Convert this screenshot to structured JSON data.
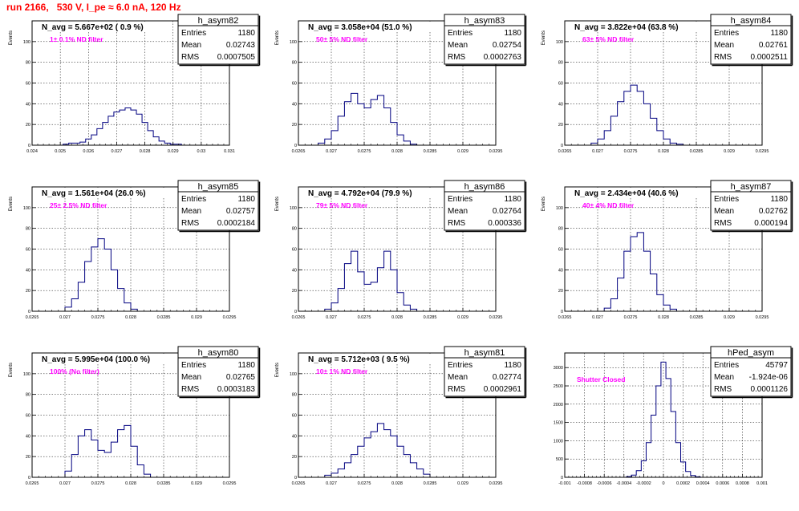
{
  "title": "run 2166,   530 V, I_pe ≈ 6.0 nA, 120 Hz",
  "colors": {
    "title": "#ff0000",
    "histogram": "#000080",
    "annotation": "#ff00ff",
    "grid": "#000000"
  },
  "chart_data": [
    {
      "type": "histogram",
      "hist_name": "h_asym82",
      "stats": {
        "entries_label": "Entries",
        "entries": "1180",
        "mean_label": "Mean",
        "mean": "0.02743",
        "rms_label": "RMS",
        "rms": "0.0007505"
      },
      "title": "N_avg = 5.667e+02 ( 0.9 %)",
      "annotation": "1± 0.1% ND filter",
      "ylabel": "Events",
      "xlabel": "",
      "xlim": [
        0.024,
        0.031
      ],
      "ylim": [
        0,
        120
      ],
      "xticks": [
        0.024,
        0.025,
        0.026,
        0.027,
        0.028,
        0.029,
        0.03,
        0.031
      ],
      "xtick_labels": [
        "0.024",
        "0.025",
        "0.026",
        "0.027",
        "0.028",
        "0.029",
        "0.03",
        "0.031"
      ],
      "yticks": [
        0,
        20,
        40,
        60,
        80,
        100,
        120
      ],
      "ytick_labels": [
        "0",
        "20",
        "40",
        "60",
        "80",
        "100",
        ""
      ],
      "x": [
        0.0252,
        0.0254,
        0.0256,
        0.0258,
        0.026,
        0.0262,
        0.0264,
        0.0266,
        0.0268,
        0.027,
        0.0272,
        0.0274,
        0.0276,
        0.0278,
        0.028,
        0.0282,
        0.0284,
        0.0286,
        0.0288,
        0.029,
        0.0292
      ],
      "values": [
        1,
        2,
        2,
        3,
        6,
        10,
        16,
        22,
        28,
        32,
        34,
        36,
        34,
        30,
        22,
        14,
        8,
        4,
        2,
        1,
        1
      ]
    },
    {
      "type": "histogram",
      "hist_name": "h_asym83",
      "stats": {
        "entries_label": "Entries",
        "entries": "1180",
        "mean_label": "Mean",
        "mean": "0.02754",
        "rms_label": "RMS",
        "rms": "0.0002763"
      },
      "title": "N_avg = 3.058e+04 (51.0 %)",
      "annotation": "50± 5% ND filter",
      "ylabel": "Events",
      "xlabel": "",
      "xlim": [
        0.0265,
        0.0295
      ],
      "ylim": [
        0,
        120
      ],
      "xticks": [
        0.0265,
        0.027,
        0.0275,
        0.028,
        0.0285,
        0.029,
        0.0295
      ],
      "xtick_labels": [
        "0.0265",
        "0.027",
        "0.0275",
        "0.028",
        "0.0285",
        "0.029",
        "0.0295"
      ],
      "yticks": [
        0,
        20,
        40,
        60,
        80,
        100,
        120
      ],
      "ytick_labels": [
        "0",
        "20",
        "40",
        "60",
        "80",
        "100",
        ""
      ],
      "x": [
        0.02685,
        0.02695,
        0.02705,
        0.02715,
        0.02725,
        0.02735,
        0.02745,
        0.02755,
        0.02765,
        0.02775,
        0.02785,
        0.02795,
        0.02805,
        0.02815,
        0.02825
      ],
      "values": [
        2,
        6,
        14,
        28,
        42,
        50,
        40,
        36,
        44,
        48,
        36,
        22,
        10,
        4,
        1
      ]
    },
    {
      "type": "histogram",
      "hist_name": "h_asym84",
      "stats": {
        "entries_label": "Entries",
        "entries": "1180",
        "mean_label": "Mean",
        "mean": "0.02761",
        "rms_label": "RMS",
        "rms": "0.0002511"
      },
      "title": "N_avg = 3.822e+04 (63.8 %)",
      "annotation": "63± 5% ND filter",
      "ylabel": "Events",
      "xlabel": "",
      "xlim": [
        0.0265,
        0.0295
      ],
      "ylim": [
        0,
        120
      ],
      "xticks": [
        0.0265,
        0.027,
        0.0275,
        0.028,
        0.0285,
        0.029,
        0.0295
      ],
      "xtick_labels": [
        "0.0265",
        "0.027",
        "0.0275",
        "0.028",
        "0.0285",
        "0.029",
        "0.0295"
      ],
      "yticks": [
        0,
        20,
        40,
        60,
        80,
        100,
        120
      ],
      "ytick_labels": [
        "0",
        "20",
        "40",
        "60",
        "80",
        "100",
        ""
      ],
      "x": [
        0.02695,
        0.02705,
        0.02715,
        0.02725,
        0.02735,
        0.02745,
        0.02755,
        0.02765,
        0.02775,
        0.02785,
        0.02795,
        0.02805,
        0.02815,
        0.02825
      ],
      "values": [
        2,
        6,
        14,
        28,
        42,
        52,
        58,
        52,
        40,
        26,
        14,
        6,
        2,
        1
      ]
    },
    {
      "type": "histogram",
      "hist_name": "h_asym85",
      "stats": {
        "entries_label": "Entries",
        "entries": "1180",
        "mean_label": "Mean",
        "mean": "0.02757",
        "rms_label": "RMS",
        "rms": "0.0002184"
      },
      "title": "N_avg = 1.561e+04 (26.0 %)",
      "annotation": "25± 2.5% ND filter",
      "ylabel": "Events",
      "xlabel": "",
      "xlim": [
        0.0265,
        0.0295
      ],
      "ylim": [
        0,
        120
      ],
      "xticks": [
        0.0265,
        0.027,
        0.0275,
        0.028,
        0.0285,
        0.029,
        0.0295
      ],
      "xtick_labels": [
        "0.0265",
        "0.027",
        "0.0275",
        "0.028",
        "0.0285",
        "0.029",
        "0.0295"
      ],
      "yticks": [
        0,
        20,
        40,
        60,
        80,
        100,
        120
      ],
      "ytick_labels": [
        "0",
        "20",
        "40",
        "60",
        "80",
        "100",
        ""
      ],
      "x": [
        0.02705,
        0.02715,
        0.02725,
        0.02735,
        0.02745,
        0.02755,
        0.02765,
        0.02775,
        0.02785,
        0.02795,
        0.02805
      ],
      "values": [
        4,
        12,
        28,
        48,
        62,
        70,
        60,
        40,
        22,
        8,
        2
      ]
    },
    {
      "type": "histogram",
      "hist_name": "h_asym86",
      "stats": {
        "entries_label": "Entries",
        "entries": "1180",
        "mean_label": "Mean",
        "mean": "0.02764",
        "rms_label": "RMS",
        "rms": "0.000336"
      },
      "title": "N_avg = 4.792e+04 (79.9 %)",
      "annotation": "79± 5% ND filter",
      "ylabel": "Events",
      "xlabel": "",
      "xlim": [
        0.0265,
        0.0295
      ],
      "ylim": [
        0,
        120
      ],
      "xticks": [
        0.0265,
        0.027,
        0.0275,
        0.028,
        0.0285,
        0.029,
        0.0295
      ],
      "xtick_labels": [
        "0.0265",
        "0.027",
        "0.0275",
        "0.028",
        "0.0285",
        "0.029",
        "0.0295"
      ],
      "yticks": [
        0,
        20,
        40,
        60,
        80,
        100,
        120
      ],
      "ytick_labels": [
        "0",
        "20",
        "40",
        "60",
        "80",
        "100",
        ""
      ],
      "x": [
        0.02695,
        0.02705,
        0.02715,
        0.02725,
        0.02735,
        0.02745,
        0.02755,
        0.02765,
        0.02775,
        0.02785,
        0.02795,
        0.02805,
        0.02815,
        0.02825
      ],
      "values": [
        2,
        8,
        22,
        46,
        58,
        38,
        26,
        28,
        42,
        58,
        40,
        18,
        6,
        2
      ]
    },
    {
      "type": "histogram",
      "hist_name": "h_asym87",
      "stats": {
        "entries_label": "Entries",
        "entries": "1180",
        "mean_label": "Mean",
        "mean": "0.02762",
        "rms_label": "RMS",
        "rms": "0.000194"
      },
      "title": "N_avg = 2.434e+04 (40.6 %)",
      "annotation": "40± 4% ND filter",
      "ylabel": "Events",
      "xlabel": "",
      "xlim": [
        0.0265,
        0.0295
      ],
      "ylim": [
        0,
        120
      ],
      "xticks": [
        0.0265,
        0.027,
        0.0275,
        0.028,
        0.0285,
        0.029,
        0.0295
      ],
      "xtick_labels": [
        "0.0265",
        "0.027",
        "0.0275",
        "0.028",
        "0.0285",
        "0.029",
        "0.0295"
      ],
      "yticks": [
        0,
        20,
        40,
        60,
        80,
        100,
        120
      ],
      "ytick_labels": [
        "0",
        "20",
        "40",
        "60",
        "80",
        "100",
        ""
      ],
      "x": [
        0.02715,
        0.02725,
        0.02735,
        0.02745,
        0.02755,
        0.02765,
        0.02775,
        0.02785,
        0.02795,
        0.02805,
        0.02815
      ],
      "values": [
        3,
        12,
        32,
        58,
        72,
        76,
        58,
        36,
        16,
        6,
        2
      ]
    },
    {
      "type": "histogram",
      "hist_name": "h_asym80",
      "stats": {
        "entries_label": "Entries",
        "entries": "1180",
        "mean_label": "Mean",
        "mean": "0.02765",
        "rms_label": "RMS",
        "rms": "0.0003183"
      },
      "title": "N_avg = 5.995e+04 (100.0 %)",
      "annotation": "100% (No filter)",
      "ylabel": "Events",
      "xlabel": "",
      "xlim": [
        0.0265,
        0.0295
      ],
      "ylim": [
        0,
        120
      ],
      "xticks": [
        0.0265,
        0.027,
        0.0275,
        0.028,
        0.0285,
        0.029,
        0.0295
      ],
      "xtick_labels": [
        "0.0265",
        "0.027",
        "0.0275",
        "0.028",
        "0.0285",
        "0.029",
        "0.0295"
      ],
      "yticks": [
        0,
        20,
        40,
        60,
        80,
        100,
        120
      ],
      "ytick_labels": [
        "0",
        "20",
        "40",
        "60",
        "80",
        "100",
        ""
      ],
      "x": [
        0.02705,
        0.02715,
        0.02725,
        0.02735,
        0.02745,
        0.02755,
        0.02765,
        0.02775,
        0.02785,
        0.02795,
        0.02805,
        0.02815,
        0.02825
      ],
      "values": [
        6,
        22,
        40,
        46,
        36,
        26,
        24,
        34,
        46,
        50,
        30,
        12,
        3
      ]
    },
    {
      "type": "histogram",
      "hist_name": "h_asym81",
      "stats": {
        "entries_label": "Entries",
        "entries": "1180",
        "mean_label": "Mean",
        "mean": "0.02774",
        "rms_label": "RMS",
        "rms": "0.0002961"
      },
      "title": "N_avg = 5.712e+03 ( 9.5 %)",
      "annotation": "10± 1% ND filter",
      "ylabel": "Events",
      "xlabel": "",
      "xlim": [
        0.0265,
        0.0295
      ],
      "ylim": [
        0,
        120
      ],
      "xticks": [
        0.0265,
        0.027,
        0.0275,
        0.028,
        0.0285,
        0.029,
        0.0295
      ],
      "xtick_labels": [
        "0.0265",
        "0.027",
        "0.0275",
        "0.028",
        "0.0285",
        "0.029",
        "0.0295"
      ],
      "yticks": [
        0,
        20,
        40,
        60,
        80,
        100,
        120
      ],
      "ytick_labels": [
        "0",
        "20",
        "40",
        "60",
        "80",
        "100",
        ""
      ],
      "x": [
        0.02695,
        0.02705,
        0.02715,
        0.02725,
        0.02735,
        0.02745,
        0.02755,
        0.02765,
        0.02775,
        0.02785,
        0.02795,
        0.02805,
        0.02815,
        0.02825,
        0.02835,
        0.02845
      ],
      "values": [
        2,
        4,
        8,
        14,
        22,
        30,
        38,
        44,
        52,
        46,
        40,
        30,
        22,
        14,
        8,
        3
      ]
    },
    {
      "type": "histogram",
      "hist_name": "hPed_asym",
      "stats": {
        "entries_label": "Entries",
        "entries": "45797",
        "mean_label": "Mean",
        "mean": "-1.924e-06",
        "rms_label": "RMS",
        "rms": "0.0001126"
      },
      "title": "",
      "annotation": "Shutter Closed",
      "ylabel": "",
      "xlabel": "",
      "xlim": [
        -0.001,
        0.001
      ],
      "ylim": [
        0,
        3400
      ],
      "xticks": [
        -0.001,
        -0.0008,
        -0.0006,
        -0.0004,
        -0.0002,
        0,
        0.0002,
        0.0004,
        0.0006,
        0.0008,
        0.001
      ],
      "xtick_labels": [
        "-0.001",
        "-0.0008",
        "-0.0006",
        "-0.0004",
        "-0.0002",
        "0",
        "0.0002",
        "0.0004",
        "0.0006",
        "0.0008",
        "0.001"
      ],
      "yticks": [
        0,
        500,
        1000,
        1500,
        2000,
        2500,
        3000
      ],
      "ytick_labels": [
        "0",
        "500",
        "1000",
        "1500",
        "2000",
        "2500",
        "3000"
      ],
      "x": [
        -0.00035,
        -0.0003,
        -0.00025,
        -0.0002,
        -0.00015,
        -0.0001,
        -5e-05,
        0,
        5e-05,
        0.0001,
        0.00015,
        0.0002,
        0.00025,
        0.0003,
        0.00035
      ],
      "values": [
        20,
        60,
        180,
        450,
        950,
        1700,
        2500,
        3150,
        2700,
        1800,
        950,
        420,
        160,
        50,
        15
      ]
    }
  ]
}
